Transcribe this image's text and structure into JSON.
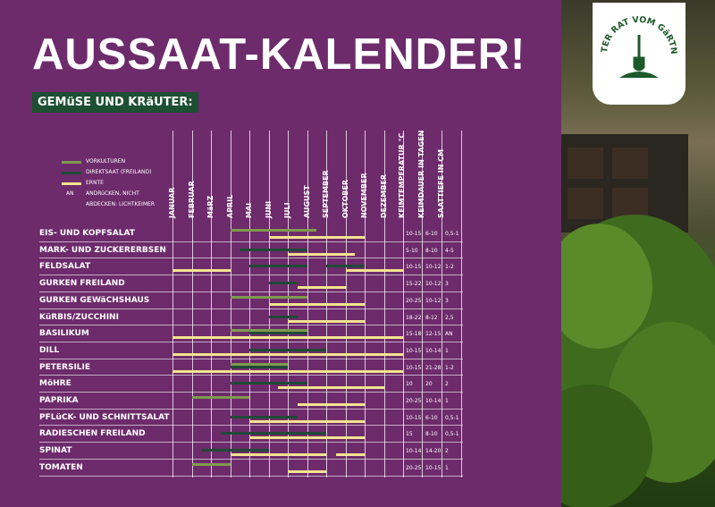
{
  "title": "AUSSAAT-KALENDER!",
  "subtitle": "GEMüSE UND KRäUTER:",
  "badge_text": "GUTER RAT VOM GäRTNER",
  "colors": {
    "background": "#6d2b6b",
    "vorkulturen": "#7f9a4e",
    "direktsaat": "#1f4a35",
    "ernte": "#f3e38f",
    "subtitle_bg": "#1d4f33",
    "badge_green": "#1d5a2a"
  },
  "legend": [
    {
      "key": "vorkulturen",
      "label": "VORKULTUREN"
    },
    {
      "key": "direktsaat",
      "label": "DIREKTSAAT (FREILAND)"
    },
    {
      "key": "ernte",
      "label": "ERNTE"
    }
  ],
  "legend_note": {
    "code": "AN",
    "line1": "ANDRüCKEN, NICHT",
    "line2": "ABDECKEN: LICHTKEIMER"
  },
  "months": [
    "JANUAR",
    "FEBRUAR",
    "MäRZ",
    "APRIL",
    "MAI",
    "JUNI",
    "JULI",
    "AUGUST",
    "SEPTEMBER",
    "OKTOBER",
    "NOVEMBER",
    "DEZEMBER"
  ],
  "info_columns": [
    "KEIMTEMPERATUR °C",
    "KEIMDAUER IN TAGEN",
    "SAATTIEFE IN CM"
  ],
  "crops": [
    {
      "name": "EIS- UND KOPFSALAT",
      "temp": "10-15",
      "days": "6-10",
      "depth": "0,5-1",
      "periods": {
        "vorkulturen": [
          [
            3,
            7.5
          ]
        ],
        "direktsaat": [],
        "ernte": [
          [
            5,
            10
          ]
        ]
      }
    },
    {
      "name": "MARK- UND ZUCKERERBSEN",
      "temp": "5-10",
      "days": "8-10",
      "depth": "4-5",
      "periods": {
        "vorkulturen": [],
        "direktsaat": [
          [
            3.5,
            7
          ]
        ],
        "ernte": [
          [
            6,
            9.5
          ]
        ]
      }
    },
    {
      "name": "FELDSALAT",
      "temp": "10-15",
      "days": "10-12",
      "depth": "1-2",
      "periods": {
        "vorkulturen": [],
        "direktsaat": [
          [
            4,
            7
          ],
          [
            8,
            10
          ]
        ],
        "ernte": [
          [
            0,
            3
          ],
          [
            9,
            12
          ]
        ]
      }
    },
    {
      "name": "GURKEN FREILAND",
      "temp": "15-22",
      "days": "10-12",
      "depth": "3",
      "periods": {
        "vorkulturen": [],
        "direktsaat": [
          [
            5,
            6.5
          ]
        ],
        "ernte": [
          [
            6.5,
            9
          ]
        ]
      }
    },
    {
      "name": "GURKEN GEWäCHSHAUS",
      "temp": "20-25",
      "days": "10-12",
      "depth": "3",
      "periods": {
        "vorkulturen": [
          [
            3,
            7
          ]
        ],
        "direktsaat": [],
        "ernte": [
          [
            5,
            10
          ]
        ]
      }
    },
    {
      "name": "KüRBIS/ZUCCHINI",
      "temp": "18-22",
      "days": "8-12",
      "depth": "2,5",
      "periods": {
        "vorkulturen": [],
        "direktsaat": [
          [
            5,
            6.5
          ]
        ],
        "ernte": [
          [
            6,
            10
          ]
        ]
      }
    },
    {
      "name": "BASILIKUM",
      "temp": "15-18",
      "days": "12-15",
      "depth": "AN",
      "periods": {
        "vorkulturen": [
          [
            3,
            7
          ]
        ],
        "direktsaat": [
          [
            4,
            7
          ]
        ],
        "ernte": [
          [
            0,
            12
          ]
        ]
      }
    },
    {
      "name": "DILL",
      "temp": "10-15",
      "days": "10-14",
      "depth": "1",
      "periods": {
        "vorkulturen": [],
        "direktsaat": [
          [
            4,
            8
          ]
        ],
        "ernte": [
          [
            0,
            12
          ]
        ]
      }
    },
    {
      "name": "PETERSILIE",
      "temp": "10-15",
      "days": "21-28",
      "depth": "1-2",
      "periods": {
        "vorkulturen": [
          [
            3,
            6
          ]
        ],
        "direktsaat": [
          [
            3,
            6
          ]
        ],
        "ernte": [
          [
            0,
            12
          ]
        ]
      }
    },
    {
      "name": "MöHRE",
      "temp": "10",
      "days": "20",
      "depth": "2",
      "periods": {
        "vorkulturen": [],
        "direktsaat": [
          [
            3,
            7
          ]
        ],
        "ernte": [
          [
            5.5,
            11
          ]
        ]
      }
    },
    {
      "name": "PAPRIKA",
      "temp": "20-25",
      "days": "10-14",
      "depth": "1",
      "periods": {
        "vorkulturen": [
          [
            1,
            4
          ]
        ],
        "direktsaat": [],
        "ernte": [
          [
            6.5,
            10
          ]
        ]
      }
    },
    {
      "name": "PFLüCK- UND SCHNITTSALAT",
      "temp": "10-15",
      "days": "6-10",
      "depth": "0,5-1",
      "periods": {
        "vorkulturen": [],
        "direktsaat": [
          [
            3,
            6.5
          ]
        ],
        "ernte": [
          [
            4,
            10
          ]
        ]
      }
    },
    {
      "name": "RADIESCHEN FREILAND",
      "temp": "15",
      "days": "8-10",
      "depth": "0,5-1",
      "periods": {
        "vorkulturen": [],
        "direktsaat": [
          [
            2.5,
            8
          ]
        ],
        "ernte": [
          [
            4,
            10
          ]
        ]
      }
    },
    {
      "name": "SPINAT",
      "temp": "10-14",
      "days": "14-20",
      "depth": "2",
      "periods": {
        "vorkulturen": [],
        "direktsaat": [
          [
            1.5,
            5
          ]
        ],
        "ernte": [
          [
            3,
            8
          ],
          [
            8.5,
            10
          ]
        ]
      }
    },
    {
      "name": "TOMATEN",
      "temp": "20-25",
      "days": "10-15",
      "depth": "1",
      "periods": {
        "vorkulturen": [
          [
            1,
            3
          ]
        ],
        "direktsaat": [],
        "ernte": [
          [
            6,
            8
          ]
        ]
      }
    }
  ]
}
